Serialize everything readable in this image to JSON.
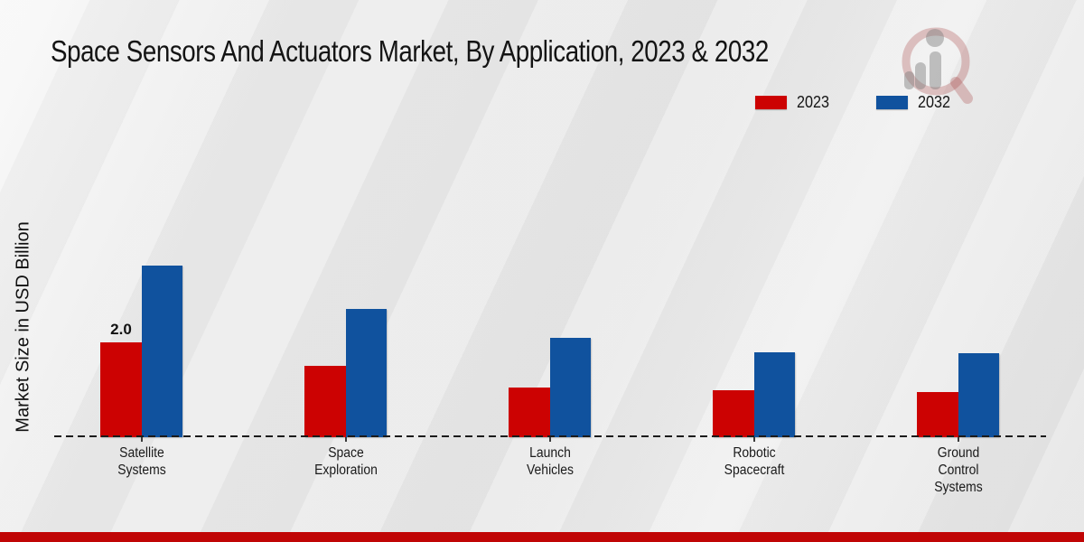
{
  "header": {
    "title": "Space Sensors And Actuators Market, By Application, 2023 & 2032"
  },
  "y_axis": {
    "label": "Market Size in USD Billion"
  },
  "legend": {
    "position": "top-right",
    "items": [
      {
        "label": "2023",
        "color": "#cc0202"
      },
      {
        "label": "2032",
        "color": "#10529e"
      }
    ]
  },
  "chart_data": {
    "type": "bar",
    "title": "Space Sensors And Actuators Market, By Application, 2023 & 2032",
    "categories": [
      "Satellite Systems",
      "Space Exploration",
      "Launch Vehicles",
      "Robotic Spacecraft",
      "Ground Control Systems"
    ],
    "series": [
      {
        "name": "2023",
        "color": "#cc0202",
        "values": [
          2.0,
          1.5,
          1.05,
          1.0,
          0.95
        ]
      },
      {
        "name": "2032",
        "color": "#10529e",
        "values": [
          3.62,
          2.7,
          2.1,
          1.8,
          1.78
        ]
      }
    ],
    "value_labels": [
      {
        "series_index": 0,
        "category_index": 0,
        "text": "2.0"
      }
    ],
    "xlabel": "",
    "ylabel": "Market Size in USD Billion",
    "ylim": [
      0,
      4.5
    ],
    "grid": false,
    "baseline_style": "dashed-zero-line",
    "legend_position": "top-right"
  },
  "watermark": {
    "name": "market-research-magnifier-logo"
  },
  "footer": {
    "bar_color": "#c00505"
  }
}
